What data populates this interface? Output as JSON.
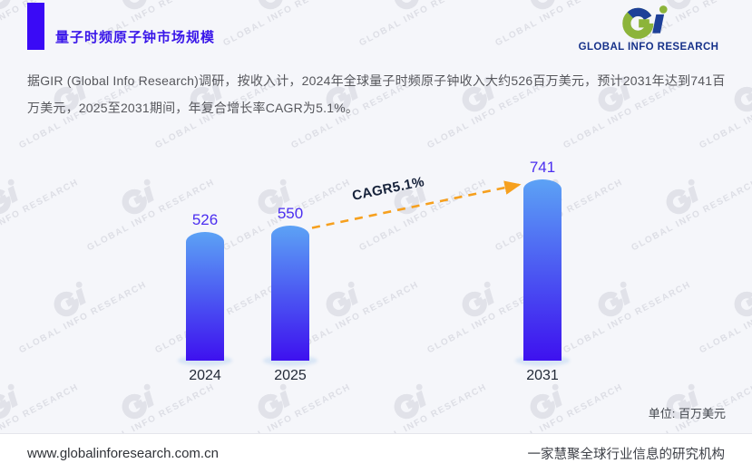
{
  "header": {
    "title": "量子时频原子钟市场规模",
    "logo": {
      "brand_text": "GLOBAL INFO RESEARCH",
      "green": "#8cb43a",
      "blue": "#1e4098"
    }
  },
  "intro": {
    "text": "据GIR (Global Info Research)调研，按收入计，2024年全球量子时频原子钟收入大约526百万美元，预计2031年达到741百万美元，2025至2031期间，年复合增长率CAGR为5.1%。"
  },
  "chart_data": {
    "type": "bar",
    "categories": [
      "2024",
      "2025",
      "2031"
    ],
    "values": [
      526,
      550,
      741
    ],
    "title": "量子时频原子钟市场规模",
    "annotation": "CAGR5.1%",
    "unit_label": "单位: 百万美元",
    "xlabel": "",
    "ylabel": "",
    "ylim": [
      0,
      800
    ],
    "grid": false,
    "legend": false,
    "bar_gradient_top": "#5ca2f5",
    "bar_gradient_bottom": "#3e11ef",
    "value_label_color": "#4b2ef0",
    "arrow_color": "#f6a01e"
  },
  "watermark": {
    "text": "GLOBAL INFO RESEARCH"
  },
  "footer": {
    "website": "www.globalinforesearch.com.cn",
    "tagline": "一家慧聚全球行业信息的研究机构"
  }
}
